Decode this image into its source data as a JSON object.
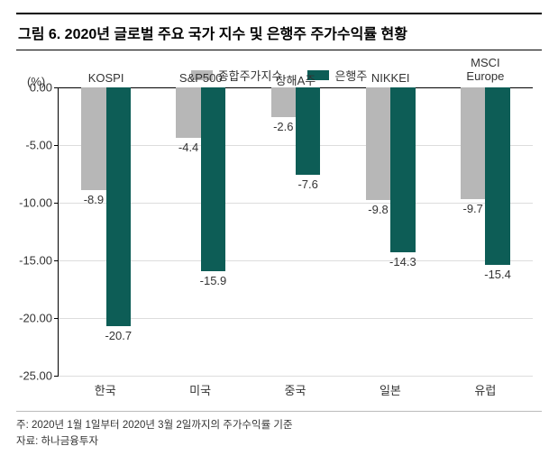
{
  "title": "그림 6. 2020년 글로벌 주요 국가 지수 및 은행주 주가수익률 현황",
  "legend": {
    "series1": {
      "label": "종합주가지수",
      "color": "#b7b7b7"
    },
    "series2": {
      "label": "은행주",
      "color": "#0d5d56"
    }
  },
  "chart": {
    "y_unit": "(%)",
    "ylim_min": -25.0,
    "ylim_max": 0.0,
    "ytick_step": 5.0,
    "yticks": [
      "0.00",
      "-5.00",
      "-10.00",
      "-15.00",
      "-20.00",
      "-25.00"
    ],
    "bar_width_pct": 26,
    "groups": [
      {
        "top_label": "KOSPI",
        "bottom_label": "한국",
        "v1": -8.9,
        "v2": -20.7
      },
      {
        "top_label": "S&P500",
        "bottom_label": "미국",
        "v1": -4.4,
        "v2": -15.9
      },
      {
        "top_label": "상해A주",
        "bottom_label": "중국",
        "v1": -2.6,
        "v2": -7.6
      },
      {
        "top_label": "NIKKEI",
        "bottom_label": "일본",
        "v1": -9.8,
        "v2": -14.3
      },
      {
        "top_label": "MSCI Europe",
        "bottom_label": "유럽",
        "v1": -9.7,
        "v2": -15.4
      }
    ]
  },
  "footnote1": "주: 2020년 1월 1일부터 2020년 3월 2일까지의 주가수익률 기준",
  "footnote2": "자료: 하나금융투자"
}
